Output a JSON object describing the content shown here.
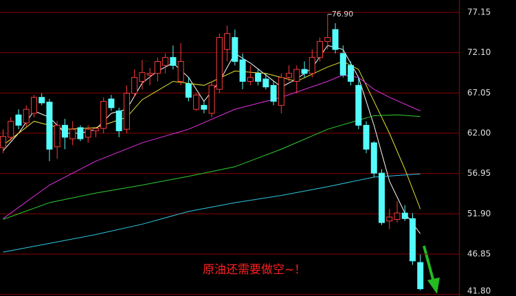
{
  "chart_data": {
    "type": "candlestick",
    "up_color": "#ff3c3c",
    "down_color": "#54fcfc",
    "open": [
      60.2,
      61.5,
      64.3,
      63.3,
      64.5,
      66.5,
      65.9,
      60.3,
      63.0,
      61.3,
      62.7,
      61.5,
      62.3,
      62.6,
      66.3,
      64.8,
      62.5,
      67.0,
      68.5,
      69.3,
      69.5,
      70.5,
      71.5,
      68.5,
      68.2,
      65.0,
      65.5,
      64.5,
      67.5,
      72.5,
      74.0,
      71.2,
      68.5,
      69.5,
      68.8,
      68.0,
      65.5,
      69.0,
      68.5,
      70.0,
      69.5,
      71.5,
      73.5,
      75.0,
      72.0,
      70.5,
      68.0,
      63.0,
      60.8,
      57.0,
      51.0,
      51.2,
      52.0,
      51.3,
      45.8
    ],
    "high": [
      62.5,
      64.0,
      65.0,
      65.5,
      66.8,
      67.0,
      66.3,
      63.5,
      63.8,
      63.5,
      63.0,
      63.0,
      62.8,
      66.5,
      66.8,
      65.2,
      68.0,
      70.0,
      71.2,
      70.2,
      71.5,
      72.0,
      73.0,
      73.3,
      69.0,
      67.0,
      66.0,
      68.5,
      74.5,
      75.5,
      75.0,
      72.0,
      70.5,
      70.0,
      69.5,
      68.5,
      69.5,
      70.5,
      70.5,
      71.0,
      72.5,
      74.0,
      76.9,
      75.8,
      73.0,
      71.0,
      69.0,
      63.5,
      61.0,
      57.5,
      52.5,
      53.5,
      53.0,
      52.0,
      46.8
    ],
    "low": [
      59.5,
      61.0,
      62.5,
      62.8,
      64.0,
      65.5,
      58.5,
      58.8,
      60.0,
      60.5,
      61.0,
      60.8,
      61.5,
      62.0,
      64.8,
      61.5,
      62.0,
      66.5,
      67.5,
      68.0,
      68.5,
      69.5,
      70.0,
      68.0,
      66.0,
      64.8,
      64.5,
      64.0,
      67.0,
      71.0,
      70.5,
      67.5,
      68.0,
      68.0,
      67.5,
      65.5,
      64.5,
      68.5,
      67.0,
      69.0,
      69.0,
      71.0,
      72.5,
      72.0,
      69.0,
      68.0,
      62.5,
      59.5,
      56.5,
      50.5,
      50.0,
      50.8,
      51.0,
      45.5,
      42.3
    ],
    "close": [
      61.6,
      63.5,
      63.0,
      65.0,
      66.5,
      65.8,
      60.0,
      63.0,
      61.5,
      62.5,
      61.3,
      62.5,
      62.6,
      66.0,
      65.2,
      62.3,
      67.0,
      69.0,
      69.6,
      69.5,
      71.0,
      71.5,
      70.5,
      71.0,
      66.5,
      66.8,
      65.0,
      68.0,
      74.0,
      74.5,
      71.0,
      68.5,
      69.0,
      68.5,
      67.8,
      66.0,
      69.0,
      69.5,
      70.0,
      69.5,
      71.5,
      73.5,
      74.0,
      72.5,
      69.3,
      68.5,
      63.0,
      60.0,
      57.0,
      50.8,
      51.5,
      52.0,
      51.3,
      46.0,
      42.5
    ],
    "lines": [
      {
        "color": "#ffffff",
        "x": [
          0,
          2,
          4,
          6,
          8,
          10,
          12,
          14,
          16,
          18,
          20,
          22,
          24,
          26,
          28,
          30,
          32,
          34,
          36,
          38,
          40,
          42,
          44,
          46,
          48,
          50,
          52,
          54
        ],
        "values": [
          59.8,
          62.0,
          64.8,
          64.0,
          62.0,
          62.0,
          62.5,
          64.5,
          65.0,
          68.3,
          69.8,
          70.8,
          69.0,
          66.0,
          68.5,
          72.0,
          70.8,
          69.3,
          67.8,
          68.8,
          70.2,
          73.0,
          72.5,
          69.0,
          63.0,
          56.0,
          52.0,
          49.4
        ]
      },
      {
        "color": "#e6e632",
        "x": [
          0,
          4,
          8,
          12,
          16,
          18,
          22,
          26,
          30,
          34,
          38,
          42,
          44,
          46,
          48,
          50,
          52,
          54
        ],
        "values": [
          60.5,
          63.5,
          62.5,
          62.7,
          64.0,
          66.2,
          68.5,
          68.0,
          69.8,
          69.5,
          68.5,
          70.3,
          71.0,
          70.0,
          66.0,
          62.0,
          57.5,
          52.5
        ]
      },
      {
        "color": "#e632e6",
        "x": [
          0,
          6,
          12,
          18,
          24,
          30,
          36,
          42,
          44,
          46,
          48,
          50,
          54
        ],
        "values": [
          51.3,
          55.5,
          58.5,
          60.8,
          62.5,
          65.0,
          66.5,
          68.5,
          69.3,
          69.0,
          67.5,
          66.5,
          64.8
        ]
      },
      {
        "color": "#32d232",
        "x": [
          0,
          6,
          12,
          18,
          24,
          30,
          36,
          42,
          48,
          51,
          54
        ],
        "values": [
          51.2,
          53.3,
          54.5,
          55.5,
          56.6,
          57.8,
          60.0,
          62.5,
          64.2,
          64.3,
          64.1
        ]
      },
      {
        "color": "#32c8e6",
        "x": [
          0,
          6,
          12,
          18,
          24,
          30,
          36,
          42,
          48,
          54
        ],
        "values": [
          47.1,
          48.2,
          49.3,
          50.6,
          52.2,
          53.3,
          54.2,
          55.3,
          56.5,
          56.9
        ]
      }
    ],
    "xlim": [
      -0.4,
      59
    ],
    "ylim": [
      41.6,
      78.7
    ],
    "yticks": [
      77.15,
      {
        "value": 72.1,
        "label": "72.10"
      },
      67.05,
      {
        "value": 62.0,
        "label": "62.00"
      },
      56.95,
      {
        "value": 51.9,
        "label": "51.90"
      },
      46.85,
      {
        "value": 41.8,
        "label": "41.80"
      }
    ],
    "grid": true,
    "peak_label": {
      "value": 76.9,
      "label": "76.90"
    },
    "annotation": "原油还需要做空~！"
  }
}
